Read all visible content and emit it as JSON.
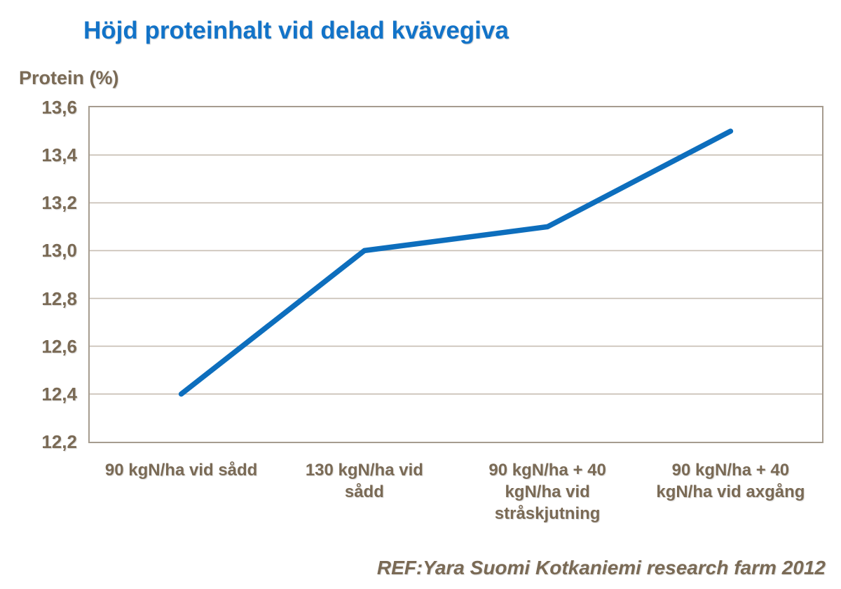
{
  "title": "Höjd proteinhalt vid delad kvävegiva",
  "y_axis_title": "Protein (%)",
  "footer": "REF:Yara Suomi Kotkaniemi research farm 2012",
  "colors": {
    "title_blue": "#1273C8",
    "line_blue": "#0D6EBD",
    "text_brown": "#7A6A55",
    "gridline": "#C7BEB3",
    "plot_border": "#A69C8F",
    "background": "#FFFFFF"
  },
  "chart_data": {
    "type": "line",
    "title": "Höjd proteinhalt vid delad kvävegiva",
    "categories": [
      "90 kgN/ha vid sådd",
      "130 kgN/ha vid sådd",
      "90 kgN/ha + 40 kgN/ha vid stråskjutning",
      "90 kgN/ha + 40 kgN/ha vid axgång"
    ],
    "values": [
      12.4,
      13.0,
      13.1,
      13.5
    ],
    "xlabel": "",
    "ylabel": "Protein (%)",
    "ylim": [
      12.2,
      13.6
    ],
    "ytick_step": 0.2,
    "ytick_labels": [
      "13,6",
      "13,4",
      "13,2",
      "13,0",
      "12,8",
      "12,6",
      "12,4",
      "12,2"
    ],
    "grid": "horizontal",
    "legend": "none",
    "annotation": "REF:Yara Suomi Kotkaniemi research farm 2012"
  }
}
